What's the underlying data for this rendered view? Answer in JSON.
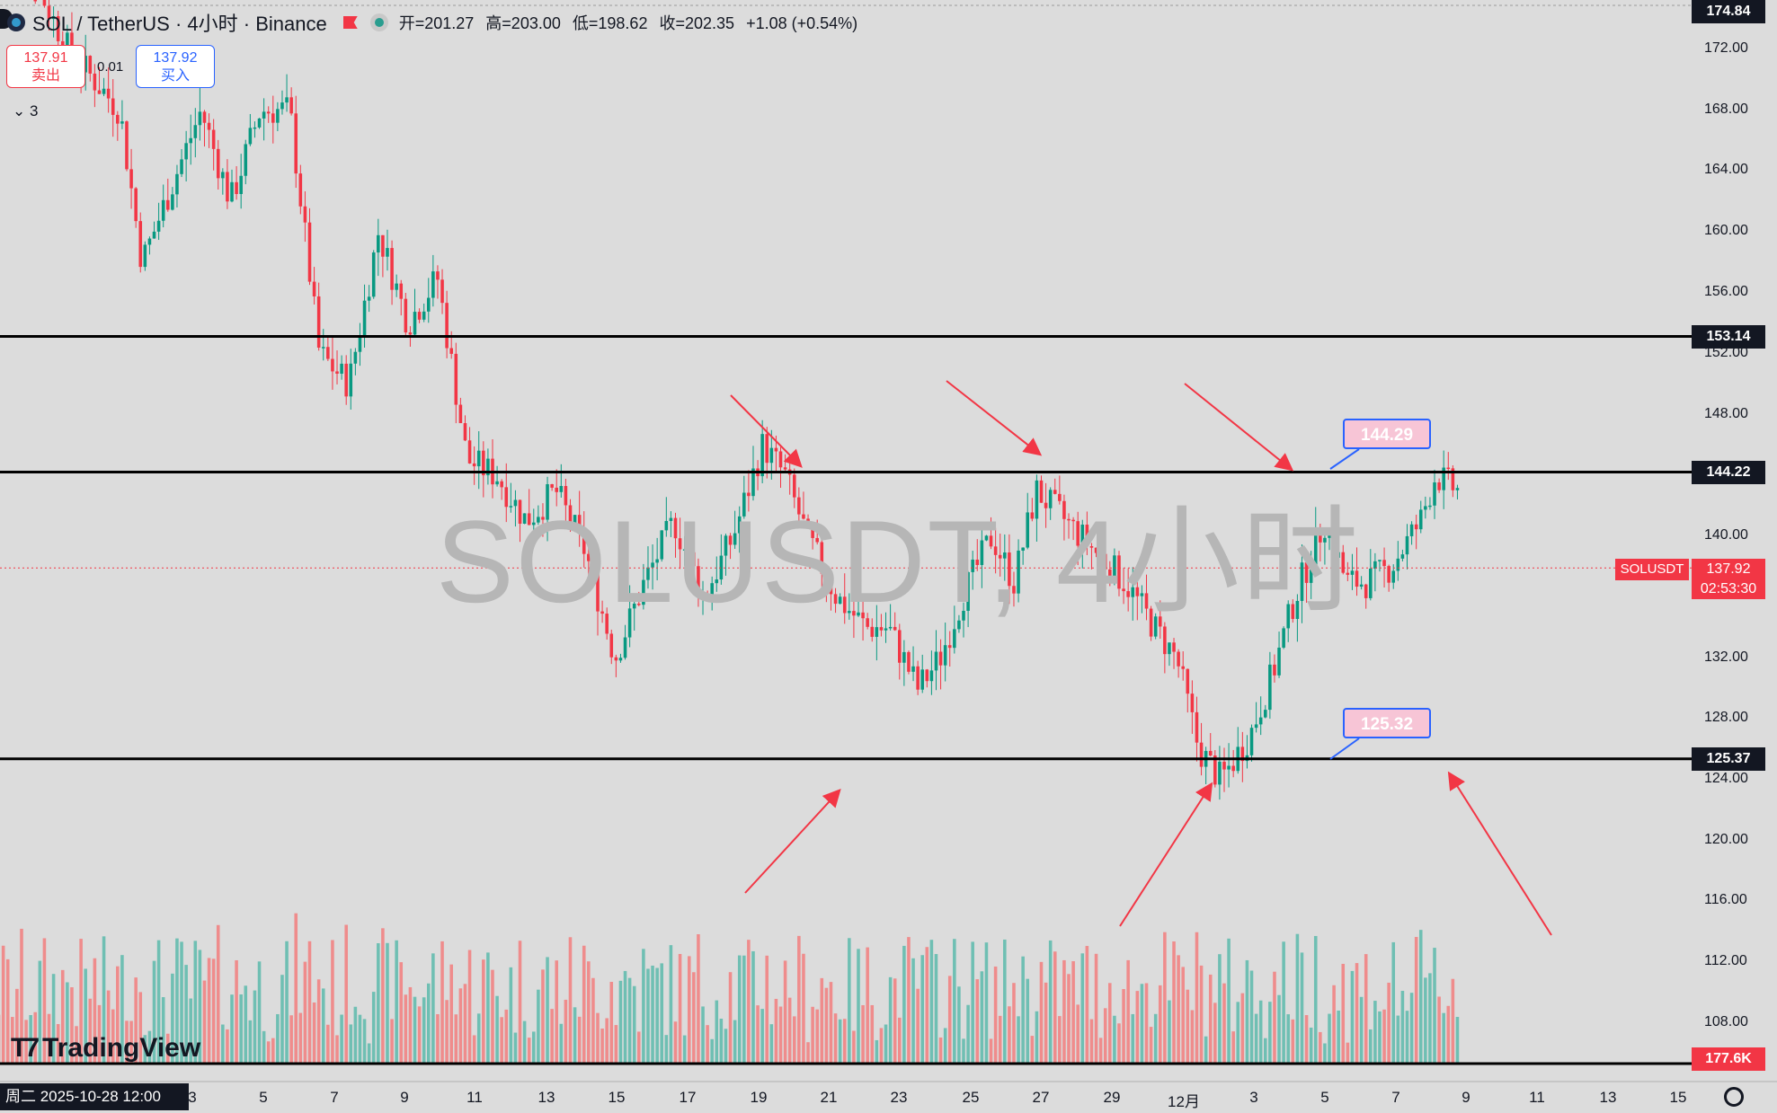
{
  "header": {
    "symbol": "SOL / TetherUS · 4小时 · Binance",
    "open": "开=201.27",
    "high": "高=203.00",
    "low": "低=198.62",
    "close": "收=202.35",
    "change": "+1.08 (+0.54%)"
  },
  "quote": {
    "sell_price": "137.91",
    "sell_label": "卖出",
    "spread": "0.01",
    "buy_price": "137.92",
    "buy_label": "买入",
    "indicators_count": "3"
  },
  "watermark": "SOLUSDT, 4小时",
  "price_axis": {
    "ticks": [
      "172.00",
      "168.00",
      "164.00",
      "160.00",
      "156.00",
      "152.00",
      "148.00",
      "140.00",
      "132.00",
      "128.00",
      "124.00",
      "120.00",
      "116.00",
      "112.00",
      "108.00"
    ],
    "top_label": "174.84",
    "levels": [
      "153.14",
      "144.22",
      "125.37"
    ],
    "current_symbol": "SOLUSDT",
    "current_price": "137.92",
    "countdown": "02:53:30",
    "volume_label": "177.6K"
  },
  "callouts": {
    "high": "144.29",
    "low": "125.32"
  },
  "time_axis": {
    "cursor_label": "周二 2025-10-28   12:00",
    "ticks": [
      "3",
      "5",
      "7",
      "9",
      "11",
      "13",
      "15",
      "17",
      "19",
      "21",
      "23",
      "25",
      "27",
      "29",
      "12月",
      "3",
      "5",
      "7",
      "9",
      "11",
      "13",
      "15"
    ]
  },
  "brand": "TradingView",
  "colors": {
    "up": "#089981",
    "down": "#f23645",
    "up_volume": "#6fbfb3",
    "down_volume": "#ef8c8c",
    "level_line": "#000000",
    "arrow": "#f23645"
  },
  "chart_data": {
    "type": "candlestick",
    "y_axis_range": [
      106,
      175
    ],
    "horizontal_levels": [
      153.14,
      144.22,
      125.37
    ],
    "candles": []
  }
}
